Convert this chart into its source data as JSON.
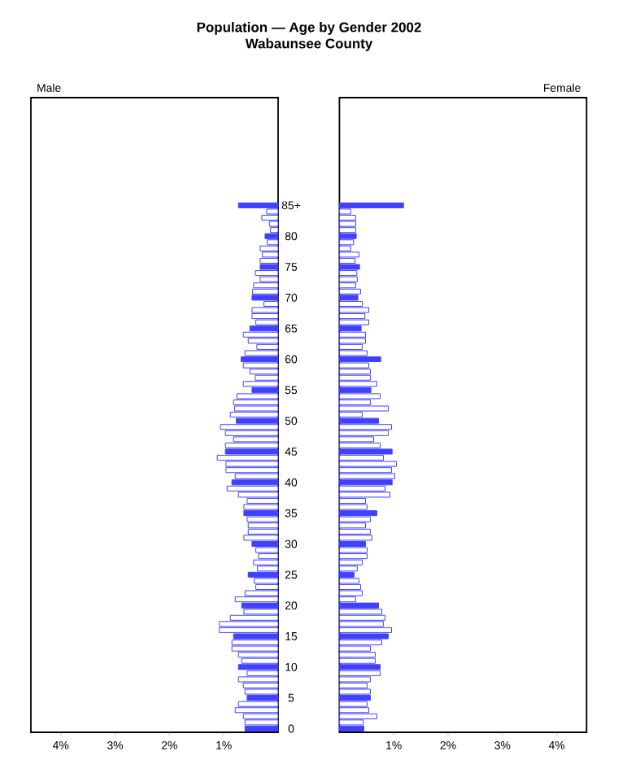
{
  "chart_data": [
    {
      "type": "bar",
      "orientation": "horizontal",
      "title": "Population — Age by Gender 2002",
      "subtitle": "Wabaunsee County",
      "annotations": [
        "Male"
      ],
      "categories": [
        "85+",
        null,
        null,
        null,
        null,
        "80",
        null,
        null,
        null,
        null,
        "75",
        null,
        null,
        null,
        null,
        "70",
        null,
        null,
        null,
        null,
        "65",
        null,
        null,
        null,
        null,
        "60",
        null,
        null,
        null,
        null,
        "55",
        null,
        null,
        null,
        null,
        "50",
        null,
        null,
        null,
        null,
        "45",
        null,
        null,
        null,
        null,
        "40",
        null,
        null,
        null,
        null,
        "35",
        null,
        null,
        null,
        null,
        "30",
        null,
        null,
        null,
        null,
        "25",
        null,
        null,
        null,
        null,
        "20",
        null,
        null,
        null,
        null,
        "15",
        null,
        null,
        null,
        null,
        "10",
        null,
        null,
        null,
        null,
        "5",
        null,
        null,
        null,
        null,
        "0"
      ],
      "values": [
        0.73,
        0.21,
        0.3,
        0.16,
        0.14,
        0.24,
        0.2,
        0.33,
        0.29,
        0.33,
        0.33,
        0.42,
        0.33,
        0.45,
        0.47,
        0.48,
        0.26,
        0.48,
        0.48,
        0.41,
        0.52,
        0.64,
        0.55,
        0.39,
        0.61,
        0.68,
        0.64,
        0.52,
        0.42,
        0.64,
        0.48,
        0.76,
        0.82,
        0.8,
        0.88,
        0.77,
        1.06,
        0.97,
        0.82,
        0.97,
        0.97,
        1.12,
        0.96,
        0.96,
        0.79,
        0.85,
        0.94,
        0.73,
        0.57,
        0.63,
        0.63,
        0.57,
        0.55,
        0.55,
        0.63,
        0.48,
        0.41,
        0.36,
        0.45,
        0.38,
        0.55,
        0.44,
        0.41,
        0.61,
        0.79,
        0.67,
        0.63,
        0.88,
        1.08,
        1.08,
        0.82,
        0.85,
        0.85,
        0.73,
        0.67,
        0.73,
        0.57,
        0.73,
        0.64,
        0.61,
        0.57,
        0.73,
        0.79,
        0.64,
        0.61,
        0.61
      ],
      "color": "#4040ff",
      "colors": [
        "#4040ff",
        "#ffffff",
        "#ffffff",
        "#ffffff",
        "#ffffff",
        "#4040ff",
        "#ffffff",
        "#ffffff",
        "#ffffff",
        "#ffffff",
        "#4040ff",
        "#ffffff",
        "#ffffff",
        "#ffffff",
        "#ffffff",
        "#4040ff",
        "#ffffff",
        "#ffffff",
        "#ffffff",
        "#ffffff",
        "#4040ff",
        "#ffffff",
        "#ffffff",
        "#ffffff",
        "#ffffff",
        "#4040ff",
        "#ffffff",
        "#ffffff",
        "#ffffff",
        "#ffffff",
        "#4040ff",
        "#ffffff",
        "#ffffff",
        "#ffffff",
        "#ffffff",
        "#4040ff",
        "#ffffff",
        "#ffffff",
        "#ffffff",
        "#ffffff",
        "#4040ff",
        "#ffffff",
        "#ffffff",
        "#ffffff",
        "#ffffff",
        "#4040ff",
        "#ffffff",
        "#ffffff",
        "#ffffff",
        "#ffffff",
        "#4040ff",
        "#ffffff",
        "#ffffff",
        "#ffffff",
        "#ffffff",
        "#4040ff",
        "#ffffff",
        "#ffffff",
        "#ffffff",
        "#ffffff",
        "#4040ff",
        "#ffffff",
        "#ffffff",
        "#ffffff",
        "#ffffff",
        "#4040ff",
        "#ffffff",
        "#ffffff",
        "#ffffff",
        "#ffffff",
        "#4040ff",
        "#ffffff",
        "#ffffff",
        "#ffffff",
        "#ffffff",
        "#4040ff",
        "#ffffff",
        "#ffffff",
        "#ffffff",
        "#ffffff",
        "#4040ff",
        "#ffffff",
        "#ffffff",
        "#ffffff",
        "#ffffff",
        "#4040ff"
      ],
      "xlim": [
        4.55,
        0
      ],
      "xticks": [
        {
          "value": 1,
          "label": "1%"
        },
        {
          "value": 2,
          "label": "2%"
        },
        {
          "value": 3,
          "label": "3%"
        },
        {
          "value": 4,
          "label": "4%"
        }
      ]
    },
    {
      "type": "bar",
      "orientation": "horizontal",
      "annotations": [
        "Female"
      ],
      "tick_labels": "x",
      "categories": [
        null,
        null,
        null,
        null,
        null,
        null,
        null,
        null,
        null,
        null,
        null,
        null,
        null,
        null,
        null,
        null,
        null,
        null,
        null,
        null,
        null,
        null,
        null,
        null,
        null,
        null,
        null,
        null,
        null,
        null,
        null,
        null,
        null,
        null,
        null,
        null,
        null,
        null,
        null,
        null,
        null,
        null,
        null,
        null,
        null,
        null,
        null,
        null,
        null,
        null,
        null,
        null,
        null,
        null,
        null,
        null,
        null,
        null,
        null,
        null,
        null,
        null,
        null,
        null,
        null,
        null,
        null,
        null,
        null,
        null,
        null,
        null,
        null,
        null,
        null,
        null,
        null,
        null,
        null,
        null,
        null,
        null,
        null,
        null,
        null,
        null
      ],
      "values": [
        1.18,
        0.21,
        0.3,
        0.3,
        0.3,
        0.31,
        0.26,
        0.21,
        0.36,
        0.29,
        0.37,
        0.32,
        0.33,
        0.3,
        0.39,
        0.34,
        0.42,
        0.54,
        0.47,
        0.54,
        0.4,
        0.48,
        0.48,
        0.42,
        0.51,
        0.76,
        0.54,
        0.57,
        0.57,
        0.69,
        0.58,
        0.75,
        0.57,
        0.9,
        0.42,
        0.72,
        0.96,
        0.9,
        0.63,
        0.75,
        0.97,
        0.81,
        1.05,
        0.96,
        1.02,
        0.97,
        0.84,
        0.93,
        0.48,
        0.51,
        0.69,
        0.57,
        0.48,
        0.57,
        0.6,
        0.48,
        0.51,
        0.51,
        0.42,
        0.33,
        0.27,
        0.36,
        0.39,
        0.42,
        0.3,
        0.72,
        0.78,
        0.84,
        0.81,
        0.96,
        0.9,
        0.78,
        0.57,
        0.66,
        0.66,
        0.75,
        0.75,
        0.57,
        0.51,
        0.57,
        0.57,
        0.51,
        0.54,
        0.69,
        0.44,
        0.45
      ],
      "color": "#4040ff",
      "colors": [
        "#4040ff",
        "#ffffff",
        "#ffffff",
        "#ffffff",
        "#ffffff",
        "#4040ff",
        "#ffffff",
        "#ffffff",
        "#ffffff",
        "#ffffff",
        "#4040ff",
        "#ffffff",
        "#ffffff",
        "#ffffff",
        "#ffffff",
        "#4040ff",
        "#ffffff",
        "#ffffff",
        "#ffffff",
        "#ffffff",
        "#4040ff",
        "#ffffff",
        "#ffffff",
        "#ffffff",
        "#ffffff",
        "#4040ff",
        "#ffffff",
        "#ffffff",
        "#ffffff",
        "#ffffff",
        "#4040ff",
        "#ffffff",
        "#ffffff",
        "#ffffff",
        "#ffffff",
        "#4040ff",
        "#ffffff",
        "#ffffff",
        "#ffffff",
        "#ffffff",
        "#4040ff",
        "#ffffff",
        "#ffffff",
        "#ffffff",
        "#ffffff",
        "#4040ff",
        "#ffffff",
        "#ffffff",
        "#ffffff",
        "#ffffff",
        "#4040ff",
        "#ffffff",
        "#ffffff",
        "#ffffff",
        "#ffffff",
        "#4040ff",
        "#ffffff",
        "#ffffff",
        "#ffffff",
        "#ffffff",
        "#4040ff",
        "#ffffff",
        "#ffffff",
        "#ffffff",
        "#ffffff",
        "#4040ff",
        "#ffffff",
        "#ffffff",
        "#ffffff",
        "#ffffff",
        "#4040ff",
        "#ffffff",
        "#ffffff",
        "#ffffff",
        "#ffffff",
        "#4040ff",
        "#ffffff",
        "#ffffff",
        "#ffffff",
        "#ffffff",
        "#4040ff",
        "#ffffff",
        "#ffffff",
        "#ffffff",
        "#ffffff",
        "#4040ff"
      ],
      "xlim": [
        0,
        4.55
      ],
      "xticks": [
        {
          "value": 1,
          "label": "1%"
        },
        {
          "value": 2,
          "label": "2%"
        },
        {
          "value": 3,
          "label": "3%"
        },
        {
          "value": 4,
          "label": "4%"
        }
      ]
    }
  ]
}
